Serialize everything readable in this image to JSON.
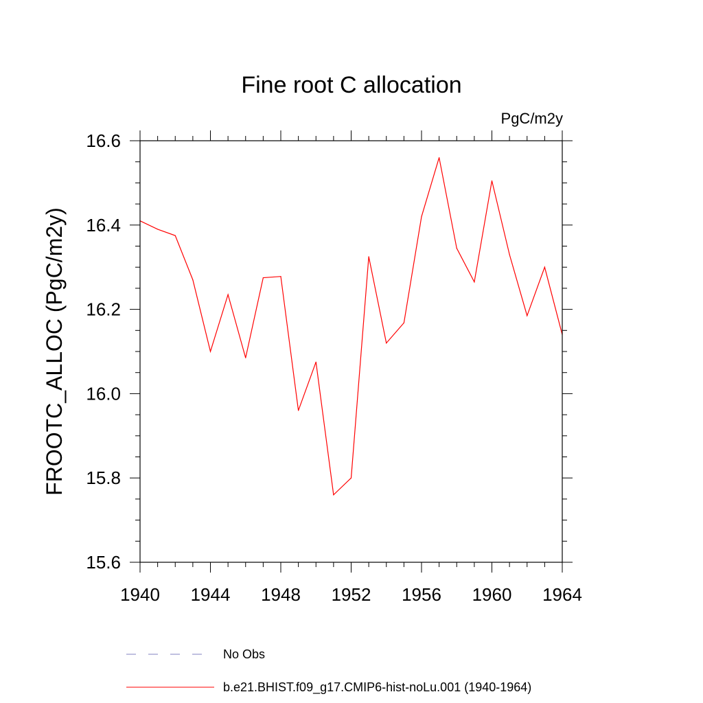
{
  "chart_data": {
    "type": "line",
    "title": "Fine root C allocation",
    "units_label": "PgC/m2y",
    "xlabel": "",
    "ylabel": "FROOTC_ALLOC  (PgC/m2y)",
    "xlim": [
      1940,
      1964
    ],
    "ylim": [
      15.6,
      16.6
    ],
    "x_ticks": [
      "1940",
      "1944",
      "1948",
      "1952",
      "1956",
      "1960",
      "1964"
    ],
    "y_ticks": [
      "15.6",
      "15.8",
      "16.0",
      "16.2",
      "16.4",
      "16.6"
    ],
    "grid": false,
    "legend_position": "bottom",
    "series": [
      {
        "name": "b.e21.BHIST.f09_g17.CMIP6-hist-noLu.001 (1940-1964)",
        "color": "#ff0000",
        "style": "solid",
        "x": [
          1940,
          1941,
          1942,
          1943,
          1944,
          1945,
          1946,
          1947,
          1948,
          1949,
          1950,
          1951,
          1952,
          1953,
          1954,
          1955,
          1956,
          1957,
          1958,
          1959,
          1960,
          1961,
          1962,
          1963,
          1964
        ],
        "values": [
          16.41,
          16.39,
          16.375,
          16.27,
          16.1,
          16.235,
          16.085,
          16.275,
          16.278,
          15.96,
          16.075,
          15.76,
          15.8,
          16.325,
          16.12,
          16.168,
          16.42,
          16.56,
          16.345,
          16.265,
          16.505,
          16.33,
          16.185,
          16.3,
          16.14
        ]
      },
      {
        "name": "No Obs",
        "color": "#8080c0",
        "style": "dashed",
        "x": [],
        "values": []
      }
    ]
  }
}
